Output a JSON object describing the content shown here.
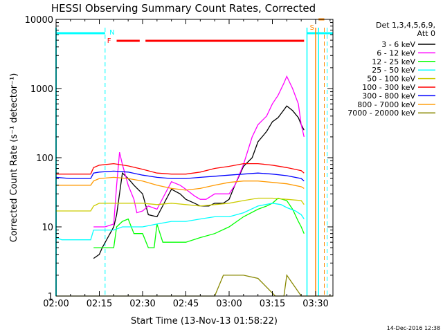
{
  "chart_data": {
    "type": "line",
    "title": "HESSI Observing Summary Count Rates, Corrected",
    "xlabel": "Start Time (13-Nov-13 01:58:22)",
    "ylabel": "Corrected Count Rate (s⁻¹ detector⁻¹)",
    "y_scale": "log",
    "ylim": [
      1,
      10000
    ],
    "xlim_minutes": [
      120,
      216
    ],
    "x_tick_labels": [
      "02:00",
      "02:15",
      "02:30",
      "02:45",
      "03:00",
      "03:15",
      "03:30"
    ],
    "y_tick_labels": [
      "1",
      "10",
      "100",
      "1000",
      "10000"
    ],
    "legend": {
      "header": [
        "Det 1,3,4,5,6,9,",
        "Att 0"
      ],
      "placement": "right"
    },
    "annotations": {
      "flag_N": "N",
      "flag_F": "F",
      "flag_S": "S",
      "timestamp": "14-Dec-2016 12:38"
    },
    "series": [
      {
        "name": "3 - 6 keV",
        "color": "#000000",
        "x": [
          120,
          125,
          132,
          133,
          135,
          136,
          140,
          141,
          143,
          145,
          147,
          150,
          152,
          155,
          160,
          163,
          165,
          168,
          170,
          173,
          175,
          178,
          180,
          182,
          185,
          188,
          190,
          193,
          195,
          197,
          200,
          202,
          204,
          205,
          206,
          207,
          213,
          214,
          215,
          216
        ],
        "y": [
          null,
          null,
          null,
          3.5,
          4,
          5,
          10,
          15,
          60,
          50,
          40,
          30,
          15,
          14,
          35,
          30,
          25,
          22,
          20,
          20,
          22,
          22,
          25,
          40,
          75,
          100,
          170,
          240,
          330,
          380,
          560,
          480,
          380,
          300,
          250,
          null,
          null,
          null,
          null,
          null
        ]
      },
      {
        "name": "6 - 12 keV",
        "color": "#ff00ff",
        "x": [
          120,
          125,
          132,
          133,
          135,
          137,
          140,
          141,
          142,
          143,
          145,
          147,
          148,
          150,
          152,
          155,
          160,
          163,
          165,
          168,
          170,
          172,
          175,
          178,
          180,
          182,
          185,
          188,
          190,
          193,
          195,
          197,
          199,
          200,
          202,
          204,
          205,
          206,
          207,
          213,
          214,
          215,
          216
        ],
        "y": [
          null,
          null,
          null,
          10,
          10,
          10,
          11,
          40,
          120,
          80,
          40,
          25,
          16,
          17,
          20,
          18,
          45,
          40,
          35,
          28,
          25,
          25,
          30,
          30,
          30,
          40,
          80,
          200,
          300,
          400,
          600,
          800,
          1200,
          1500,
          1000,
          600,
          300,
          200,
          null,
          null,
          null,
          null,
          null
        ]
      },
      {
        "name": "12 - 25 keV",
        "color": "#00ff00",
        "x": [
          120,
          125,
          132,
          133,
          136,
          140,
          141,
          143,
          145,
          147,
          150,
          152,
          154,
          155,
          157,
          160,
          165,
          170,
          175,
          180,
          185,
          190,
          193,
          195,
          197,
          200,
          202,
          204,
          205,
          206,
          207,
          213,
          214,
          215,
          216
        ],
        "y": [
          null,
          null,
          null,
          5,
          5,
          5,
          10,
          12,
          13,
          8,
          8,
          5,
          5,
          11,
          6,
          6,
          6,
          7,
          8,
          10,
          14,
          18,
          20,
          22,
          26,
          24,
          18,
          12,
          10,
          8,
          null,
          null,
          null,
          null,
          null
        ]
      },
      {
        "name": "25 - 50 keV",
        "color": "#00ffff",
        "x": [
          120,
          122,
          125,
          130,
          132,
          133,
          135,
          140,
          143,
          145,
          150,
          155,
          160,
          165,
          170,
          175,
          180,
          185,
          190,
          195,
          198,
          200,
          203,
          205,
          206,
          207,
          213,
          214,
          215,
          216
        ],
        "y": [
          7,
          6.5,
          6.5,
          6.5,
          6.5,
          9,
          9,
          9,
          10,
          10,
          10,
          11,
          12,
          12,
          13,
          14,
          14,
          16,
          20,
          22,
          21,
          19,
          17,
          15,
          13,
          null,
          null,
          null,
          null,
          null
        ]
      },
      {
        "name": "50 - 100 keV",
        "color": "#cccc00",
        "x": [
          120,
          125,
          130,
          132,
          133,
          135,
          140,
          145,
          150,
          155,
          160,
          165,
          170,
          175,
          180,
          185,
          190,
          195,
          200,
          205,
          206,
          207,
          213,
          214,
          215,
          216
        ],
        "y": [
          17,
          17,
          17,
          17,
          20,
          22,
          22,
          22,
          22,
          21,
          22,
          21,
          20,
          21,
          22,
          24,
          26,
          26,
          25,
          24,
          21,
          null,
          null,
          null,
          null,
          null
        ]
      },
      {
        "name": "100 - 300 keV",
        "color": "#ff0000",
        "x": [
          120,
          125,
          130,
          132,
          133,
          135,
          140,
          145,
          150,
          155,
          160,
          165,
          170,
          175,
          180,
          185,
          190,
          195,
          200,
          205,
          206,
          207,
          213,
          214,
          215,
          216
        ],
        "y": [
          58,
          58,
          58,
          58,
          72,
          78,
          82,
          76,
          68,
          60,
          58,
          58,
          62,
          70,
          75,
          82,
          82,
          78,
          72,
          65,
          60,
          null,
          null,
          null,
          null,
          null
        ]
      },
      {
        "name": "300 - 800 keV",
        "color": "#0000ff",
        "x": [
          120,
          125,
          130,
          132,
          133,
          135,
          140,
          145,
          150,
          155,
          160,
          165,
          170,
          175,
          180,
          185,
          190,
          195,
          200,
          205,
          206,
          207,
          213,
          214,
          215,
          216
        ],
        "y": [
          52,
          50,
          50,
          50,
          60,
          62,
          64,
          62,
          56,
          52,
          50,
          50,
          52,
          54,
          56,
          58,
          60,
          58,
          55,
          50,
          46,
          null,
          null,
          null,
          null,
          null
        ]
      },
      {
        "name": "800 - 7000 keV",
        "color": "#ff9900",
        "x": [
          120,
          125,
          130,
          132,
          133,
          135,
          140,
          145,
          150,
          155,
          160,
          165,
          170,
          175,
          180,
          185,
          190,
          195,
          200,
          205,
          206,
          207,
          213,
          214,
          215,
          216
        ],
        "y": [
          40,
          40,
          40,
          40,
          46,
          50,
          52,
          50,
          46,
          40,
          36,
          34,
          36,
          40,
          44,
          46,
          46,
          44,
          42,
          38,
          36,
          null,
          null,
          null,
          null,
          null
        ]
      },
      {
        "name": "7000 - 20000 keV",
        "color": "#888800",
        "x": [
          120,
          125,
          140,
          145,
          160,
          165,
          170,
          175,
          178,
          180,
          182,
          185,
          190,
          196,
          199,
          200,
          205,
          216
        ],
        "y": [
          1,
          1,
          1,
          1,
          1,
          1,
          1,
          1,
          2,
          2,
          2,
          2,
          1.8,
          1,
          1,
          2,
          1,
          1
        ]
      }
    ]
  }
}
